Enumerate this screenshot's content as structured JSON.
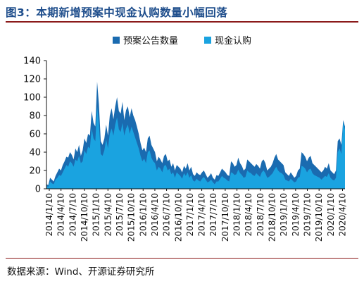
{
  "header": {
    "title": "图3：本期新增预案中现金认购数量小幅回落"
  },
  "footer": {
    "source": "数据来源：Wind、开源证券研究所"
  },
  "colors": {
    "title": "#1f4e8c",
    "rule": "#8b1a1a",
    "series_plan": "#1a6bb0",
    "series_cash": "#1aa3e0",
    "axis": "#111111"
  },
  "chart_data": {
    "type": "area",
    "stacked": false,
    "ylim": [
      0,
      140
    ],
    "yticks": [
      0,
      20,
      40,
      60,
      80,
      100,
      120,
      140
    ],
    "grid": false,
    "legend_position": "top-center",
    "x_tick_labels": [
      "2014/1/10",
      "2014/4/10",
      "2014/7/10",
      "2014/10/10",
      "2015/1/10",
      "2015/4/10",
      "2015/7/10",
      "2015/10/10",
      "2016/1/10",
      "2016/4/10",
      "2016/7/10",
      "2016/10/10",
      "2017/1/10",
      "2017/4/10",
      "2017/7/10",
      "2017/10/10",
      "2018/1/10",
      "2018/4/10",
      "2018/7/10",
      "2018/10/10",
      "2019/1/10",
      "2019/4/10",
      "2019/7/10",
      "2019/10/10",
      "2020/1/10",
      "2020/4/10"
    ],
    "series": [
      {
        "name": "预案公告数量",
        "color": "#1a6bb0",
        "values": [
          5,
          4,
          12,
          10,
          8,
          14,
          18,
          22,
          20,
          26,
          30,
          35,
          34,
          40,
          37,
          32,
          44,
          40,
          48,
          36,
          42,
          55,
          50,
          60,
          58,
          85,
          72,
          68,
          117,
          92,
          52,
          48,
          55,
          70,
          58,
          80,
          88,
          76,
          90,
          100,
          85,
          82,
          95,
          75,
          86,
          90,
          78,
          88,
          80,
          75,
          68,
          60,
          50,
          42,
          45,
          40,
          55,
          58,
          48,
          44,
          40,
          30,
          35,
          32,
          28,
          36,
          38,
          30,
          32,
          24,
          28,
          20,
          26,
          24,
          22,
          18,
          25,
          22,
          28,
          20,
          24,
          16,
          14,
          18,
          16,
          15,
          18,
          20,
          16,
          12,
          14,
          17,
          12,
          10,
          15,
          14,
          18,
          22,
          20,
          18,
          15,
          14,
          30,
          28,
          24,
          26,
          34,
          28,
          25,
          20,
          22,
          32,
          30,
          28,
          26,
          24,
          27,
          25,
          22,
          30,
          32,
          28,
          20,
          22,
          24,
          28,
          34,
          38,
          32,
          30,
          28,
          26,
          18,
          16,
          14,
          18,
          15,
          12,
          14,
          20,
          22,
          40,
          38,
          35,
          30,
          34,
          36,
          28,
          26,
          24,
          22,
          20,
          18,
          20,
          24,
          22,
          28,
          20,
          18,
          16,
          20,
          52,
          55,
          48,
          75,
          68
        ]
      },
      {
        "name": "现金认购",
        "color": "#1aa3e0",
        "values": [
          3,
          2,
          8,
          6,
          5,
          10,
          12,
          15,
          14,
          18,
          22,
          26,
          24,
          30,
          28,
          24,
          32,
          30,
          36,
          28,
          30,
          42,
          38,
          46,
          44,
          66,
          55,
          52,
          90,
          70,
          38,
          36,
          42,
          54,
          44,
          60,
          66,
          58,
          70,
          78,
          65,
          62,
          72,
          58,
          66,
          70,
          60,
          68,
          62,
          56,
          50,
          44,
          36,
          30,
          33,
          28,
          40,
          42,
          34,
          30,
          28,
          20,
          24,
          22,
          18,
          25,
          26,
          20,
          22,
          16,
          18,
          12,
          18,
          16,
          14,
          11,
          17,
          14,
          18,
          12,
          15,
          9,
          8,
          11,
          9,
          8,
          11,
          13,
          10,
          7,
          8,
          10,
          7,
          5,
          8,
          8,
          11,
          14,
          12,
          11,
          9,
          8,
          18,
          17,
          15,
          16,
          21,
          17,
          15,
          12,
          13,
          20,
          18,
          17,
          15,
          14,
          17,
          15,
          13,
          18,
          20,
          17,
          12,
          13,
          15,
          17,
          21,
          24,
          20,
          18,
          17,
          15,
          10,
          9,
          8,
          11,
          9,
          7,
          8,
          12,
          13,
          25,
          24,
          22,
          18,
          21,
          22,
          17,
          15,
          14,
          13,
          12,
          10,
          12,
          14,
          13,
          17,
          12,
          10,
          9,
          12,
          40,
          44,
          38,
          73,
          64
        ]
      }
    ]
  }
}
